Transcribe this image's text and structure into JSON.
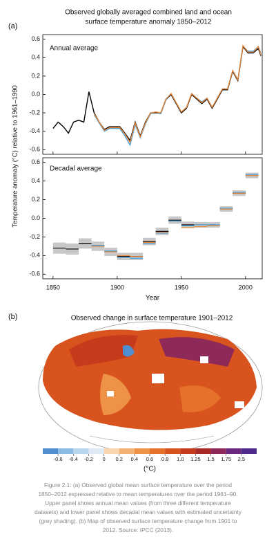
{
  "chart_data": [
    {
      "type": "line",
      "panel_label": "(a)",
      "title": [
        "Observed globally averaged combined land and ocean",
        "surface temperature anomaly 1850–2012"
      ],
      "subtitle": "Annual average",
      "ylabel": "Temperature anomaly (°C) relative to 1961–1990",
      "xlim": [
        1842,
        2013
      ],
      "ylim": [
        -0.65,
        0.65
      ],
      "yticks": [
        -0.6,
        -0.4,
        -0.2,
        {
          "value": 0,
          "label": "0.0"
        },
        0.2,
        0.4,
        0.6
      ],
      "x": [
        1850,
        1854,
        1858,
        1862,
        1866,
        1870,
        1874,
        1878,
        1882,
        1886,
        1890,
        1894,
        1898,
        1902,
        1906,
        1910,
        1914,
        1918,
        1922,
        1926,
        1930,
        1934,
        1938,
        1942,
        1946,
        1950,
        1954,
        1958,
        1962,
        1966,
        1970,
        1974,
        1978,
        1982,
        1986,
        1990,
        1994,
        1998,
        2002,
        2006,
        2010,
        2012
      ],
      "series": [
        {
          "color": "#4aa3df",
          "values": [
            null,
            null,
            null,
            null,
            null,
            null,
            null,
            null,
            -0.22,
            -0.31,
            -0.4,
            -0.37,
            -0.37,
            -0.37,
            -0.45,
            -0.55,
            -0.33,
            -0.47,
            -0.32,
            -0.21,
            -0.19,
            -0.21,
            -0.06,
            0.0,
            -0.1,
            -0.2,
            -0.15,
            0.01,
            -0.04,
            -0.08,
            -0.04,
            -0.14,
            -0.04,
            0.06,
            0.06,
            0.26,
            0.16,
            0.52,
            0.47,
            0.47,
            0.52,
            0.44
          ]
        },
        {
          "color": "#000000",
          "values": [
            -0.37,
            -0.3,
            -0.35,
            -0.42,
            -0.3,
            -0.28,
            -0.3,
            0.03,
            -0.2,
            -0.3,
            -0.38,
            -0.35,
            -0.35,
            -0.35,
            -0.42,
            -0.5,
            -0.3,
            -0.45,
            -0.3,
            -0.2,
            -0.2,
            -0.2,
            -0.05,
            0.0,
            -0.1,
            -0.2,
            -0.15,
            0.0,
            -0.05,
            -0.1,
            -0.05,
            -0.15,
            -0.05,
            0.05,
            0.05,
            0.25,
            0.15,
            0.52,
            0.45,
            0.45,
            0.5,
            0.42
          ]
        },
        {
          "color": "#e8883a",
          "values": [
            null,
            null,
            null,
            null,
            null,
            null,
            null,
            null,
            -0.21,
            -0.3,
            -0.39,
            -0.36,
            -0.36,
            -0.36,
            -0.43,
            -0.52,
            -0.31,
            -0.46,
            -0.31,
            -0.2,
            -0.19,
            -0.2,
            -0.05,
            0.01,
            -0.09,
            -0.19,
            -0.14,
            0.01,
            -0.04,
            -0.09,
            -0.04,
            -0.14,
            -0.04,
            0.06,
            0.06,
            0.26,
            0.16,
            0.53,
            0.46,
            0.46,
            0.52,
            0.43
          ]
        }
      ]
    },
    {
      "type": "decadal",
      "subtitle": "Decadal average",
      "xlabel": "Year",
      "xlim": [
        1842,
        2013
      ],
      "ylim": [
        -0.65,
        0.65
      ],
      "xticks": [
        1850,
        1900,
        1950,
        2000
      ],
      "yticks": [
        -0.6,
        -0.4,
        -0.2,
        {
          "value": 0,
          "label": "0.0"
        },
        0.2,
        0.4,
        0.6
      ],
      "x": [
        1855,
        1865,
        1875,
        1885,
        1895,
        1905,
        1915,
        1925,
        1935,
        1945,
        1955,
        1965,
        1975,
        1985,
        1995,
        2005
      ],
      "uncertainty": [
        0.06,
        0.06,
        0.055,
        0.05,
        0.045,
        0.04,
        0.04,
        0.04,
        0.04,
        0.04,
        0.035,
        0.03,
        0.03,
        0.03,
        0.03,
        0.03
      ],
      "series": [
        {
          "color": "#000000",
          "values": [
            -0.32,
            -0.33,
            -0.27,
            -0.3,
            -0.36,
            -0.41,
            -0.41,
            -0.25,
            -0.14,
            -0.02,
            -0.07,
            -0.07,
            -0.07,
            0.1,
            0.27,
            0.46
          ]
        },
        {
          "color": "#e8883a",
          "values": [
            null,
            null,
            null,
            -0.3,
            -0.36,
            -0.4,
            -0.41,
            -0.26,
            -0.15,
            -0.03,
            -0.1,
            -0.09,
            -0.08,
            0.1,
            0.27,
            0.46
          ]
        },
        {
          "color": "#4aa3df",
          "values": [
            null,
            null,
            null,
            -0.29,
            -0.35,
            -0.42,
            -0.43,
            -0.27,
            -0.16,
            -0.03,
            -0.08,
            -0.07,
            -0.07,
            0.11,
            0.28,
            0.47
          ]
        }
      ]
    },
    {
      "type": "map",
      "panel_label": "(b)",
      "title": "Observed change in surface temperature 1901–2012",
      "colors": [
        "#4f8fd0",
        "#8bbbe3",
        "#b8d6ee",
        "#dde9f3",
        "#f8d5ae",
        "#f3b274",
        "#ed9247",
        "#e5712b",
        "#d9531e",
        "#c63b1c",
        "#a82a26",
        "#8e2a5a",
        "#6b2a7e",
        "#4e2a8a"
      ],
      "ticks": [
        -0.6,
        -0.4,
        -0.2,
        0,
        0.2,
        0.4,
        0.6,
        0.8,
        {
          "value": 1,
          "label": "1.0"
        },
        1.25,
        1.5,
        1.75,
        2.5
      ],
      "unit": "(°C)"
    }
  ],
  "caption": [
    "Figure 2.1: (a) Observed global mean surface temperature over the period",
    "1850–2012 expressed relative to mean temperatures over the period 1961–90.",
    "Upper panel shows annual mean values (from three different temperature",
    "datasets) and lower panel shows decadal mean values with estimated uncertainty",
    "(grey shading). (b) Map of observed surface temperature change from 1901 to",
    "2012. Source: IPCC (2013)."
  ]
}
